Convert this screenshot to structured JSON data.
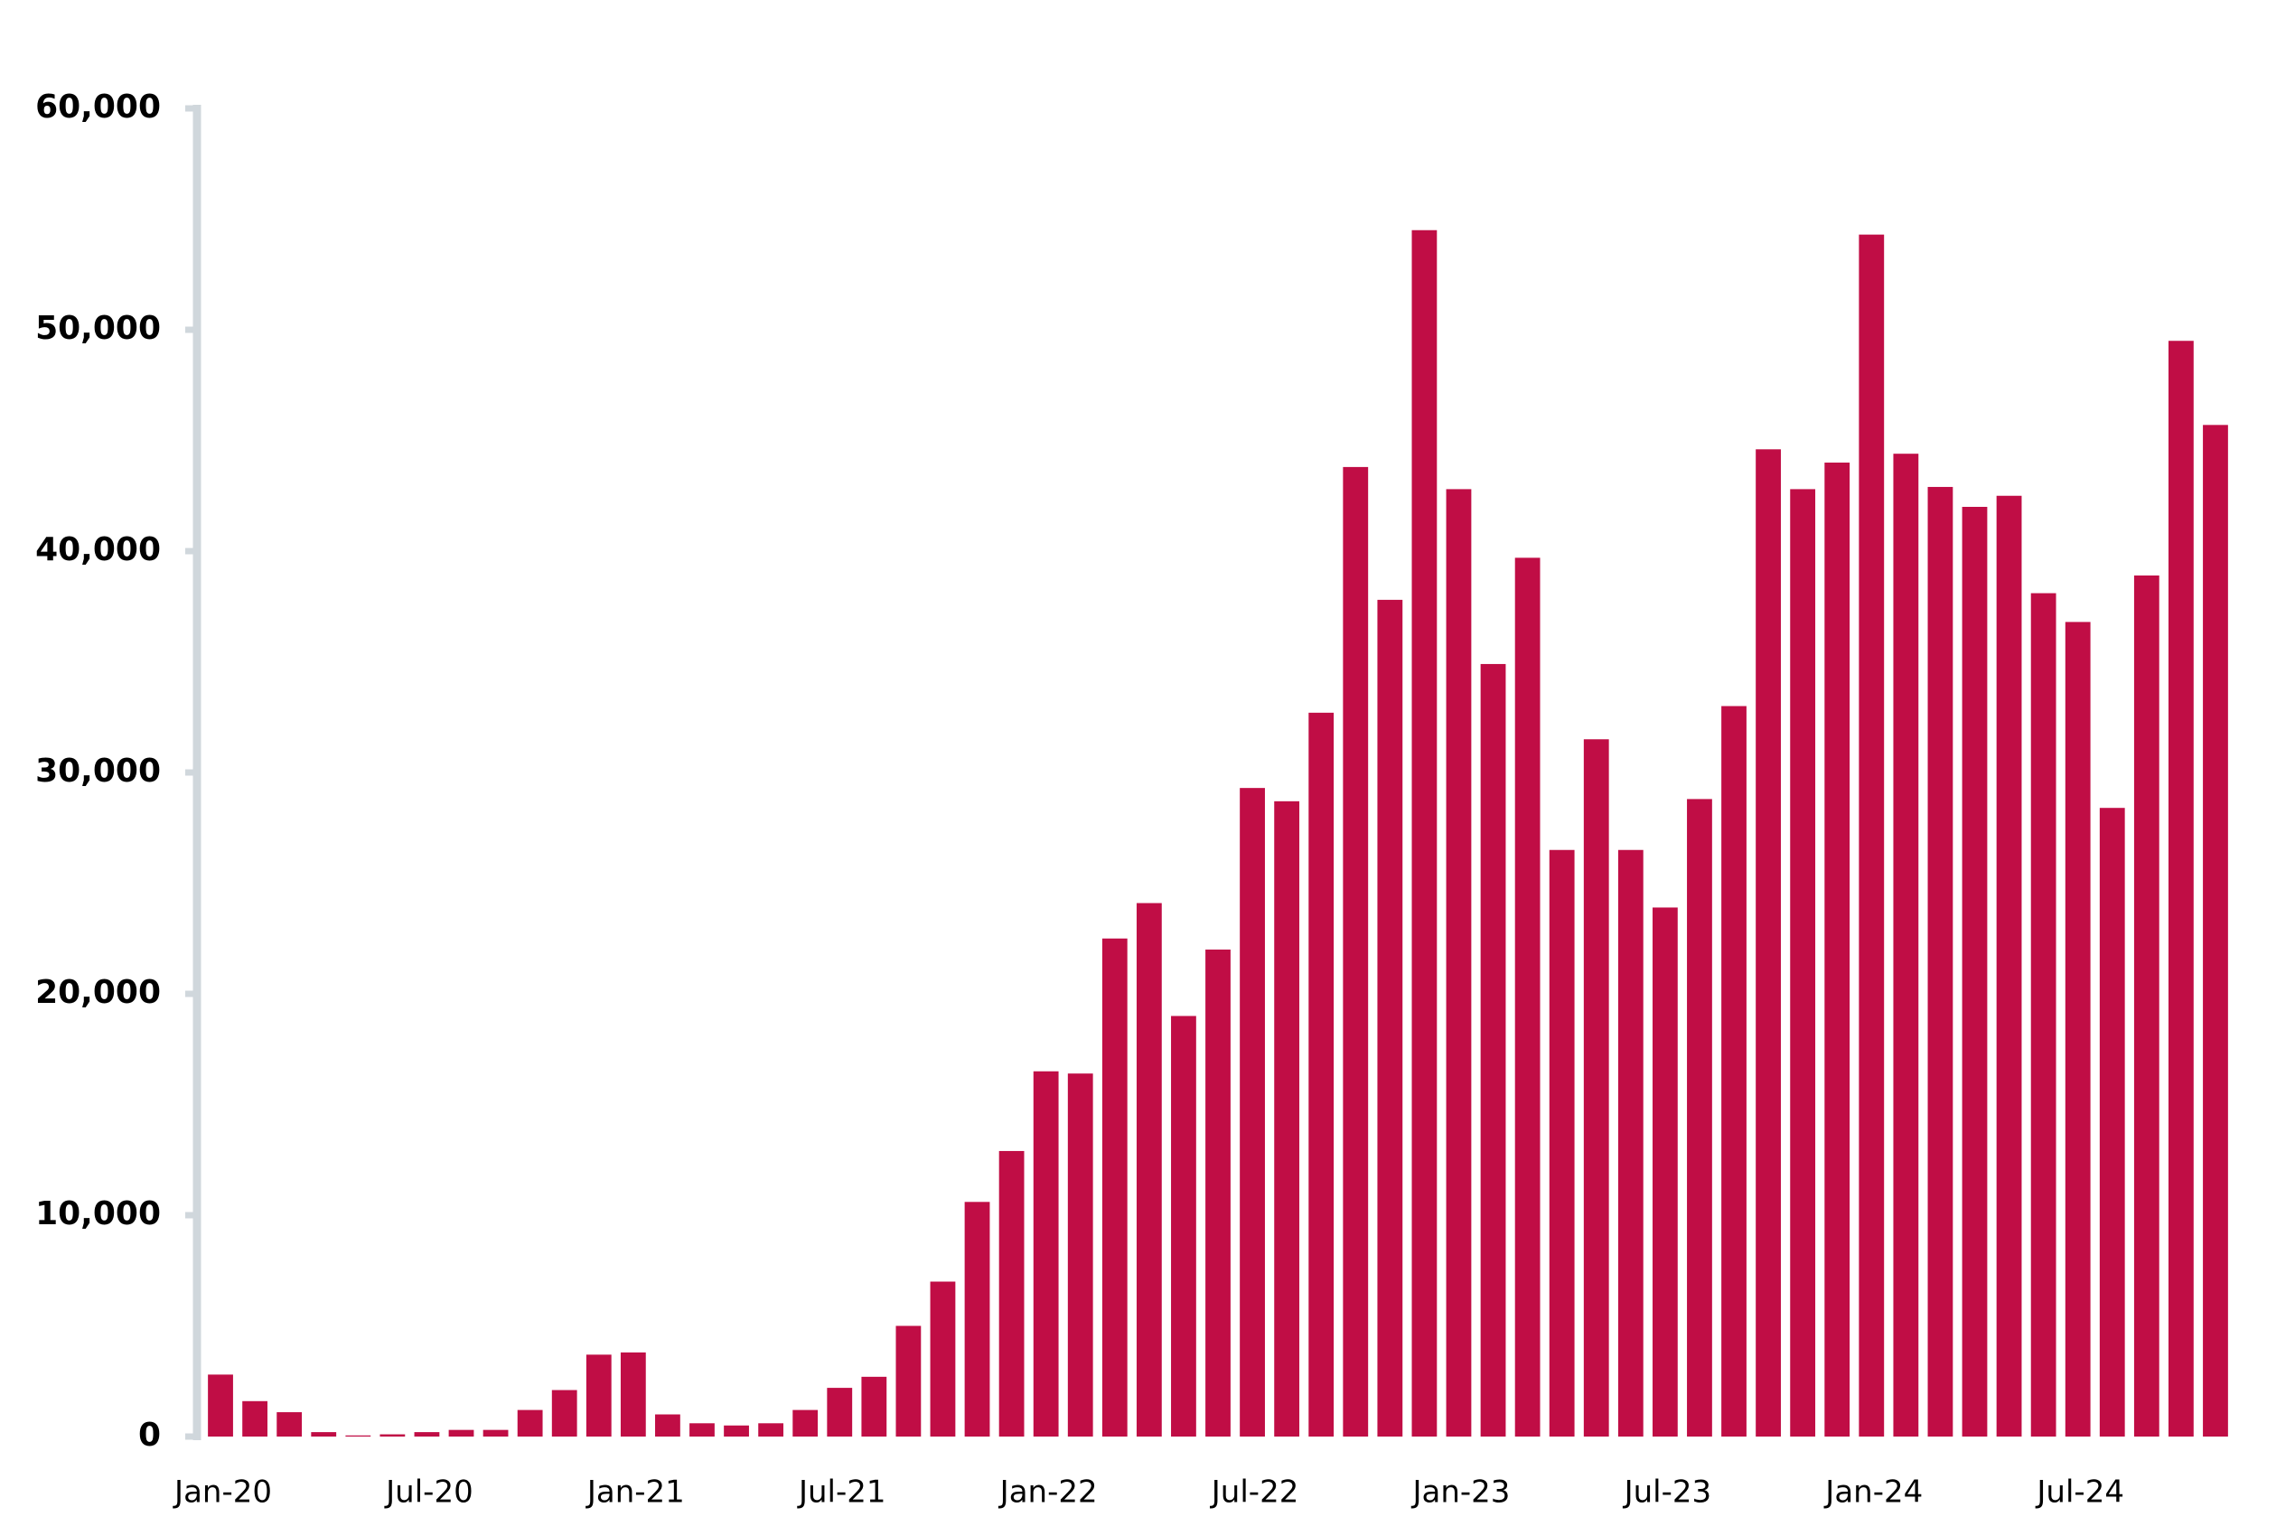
{
  "chart_data": {
    "type": "bar",
    "categories": [
      "Jan-20",
      null,
      null,
      null,
      null,
      null,
      "Jul-20",
      null,
      null,
      null,
      null,
      null,
      "Jan-21",
      null,
      null,
      null,
      null,
      null,
      "Jul-21",
      null,
      null,
      null,
      null,
      null,
      "Jan-22",
      null,
      null,
      null,
      null,
      null,
      "Jul-22",
      null,
      null,
      null,
      null,
      null,
      "Jan-23",
      null,
      null,
      null,
      null,
      null,
      "Jul-23",
      null,
      null,
      null,
      null,
      null,
      "Jan-24",
      null,
      null,
      null,
      null,
      null,
      "Jul-24",
      null,
      null,
      null,
      null
    ],
    "values": [
      2800,
      1600,
      1100,
      200,
      50,
      100,
      200,
      300,
      300,
      1200,
      2100,
      3700,
      3800,
      1000,
      600,
      500,
      600,
      1200,
      2200,
      2700,
      5000,
      7000,
      10600,
      12900,
      16500,
      16400,
      22500,
      24100,
      19000,
      22000,
      29300,
      28700,
      32700,
      43800,
      37800,
      54500,
      42800,
      34900,
      39700,
      26500,
      31500,
      26500,
      23900,
      28800,
      33000,
      44600,
      42800,
      44000,
      54300,
      44400,
      42900,
      42000,
      42500,
      38100,
      36800,
      28400,
      38900,
      49500,
      45700
    ],
    "color": "#c00d45",
    "ylim": [
      0,
      60000
    ],
    "yticks": [
      0,
      {
        "value": 10000,
        "label": "10,000"
      },
      {
        "value": 20000,
        "label": "20,000"
      },
      {
        "value": 30000,
        "label": "30,000"
      },
      {
        "value": 40000,
        "label": "40,000"
      },
      {
        "value": 50000,
        "label": "50,000"
      },
      {
        "value": 60000,
        "label": "60,000"
      }
    ],
    "grid": false
  }
}
